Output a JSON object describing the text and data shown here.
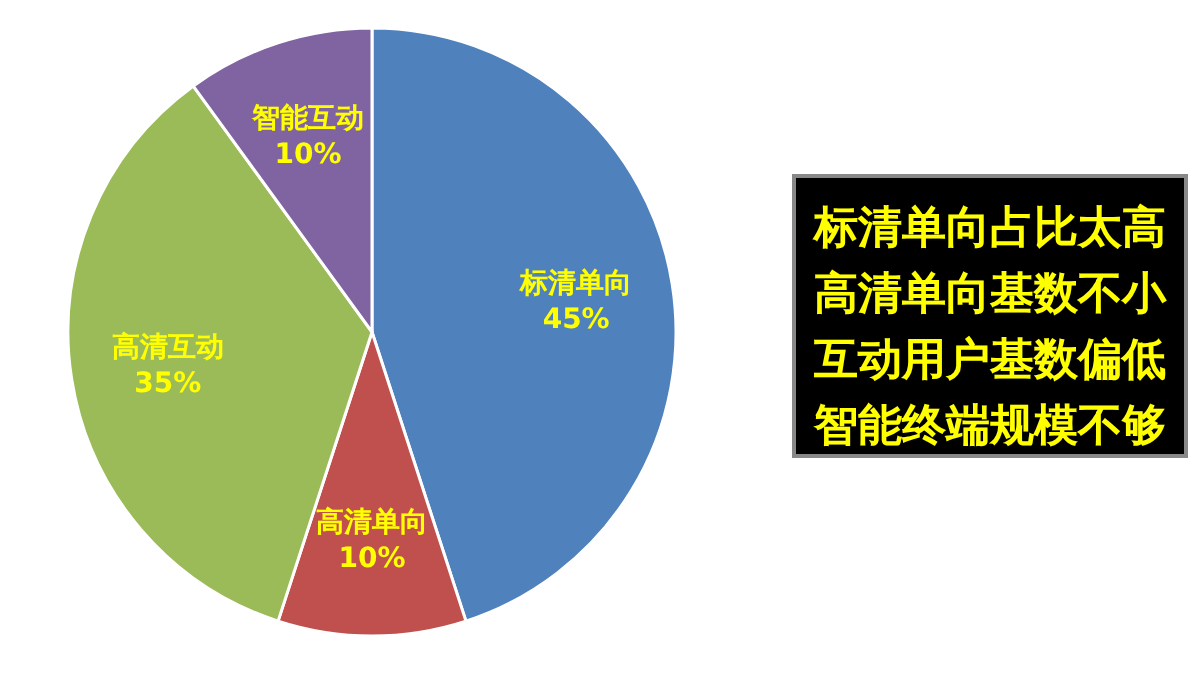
{
  "chart_data": [
    {
      "type": "pie",
      "categories": [
        "标清单向",
        "高清单向",
        "高清互动",
        "智能互动"
      ],
      "values": [
        45,
        10,
        35,
        10
      ],
      "colors": [
        "#4f81bd",
        "#c0504d",
        "#9bbb59",
        "#8064a2"
      ],
      "value_labels": [
        "45%",
        "10%",
        "35%",
        "10%"
      ]
    },
    {
      "type": "other",
      "annotations": [
        "标清单向占比太高",
        "高清单向基数不小",
        "互动用户基数偏低",
        "智能终端规模不够"
      ]
    }
  ]
}
